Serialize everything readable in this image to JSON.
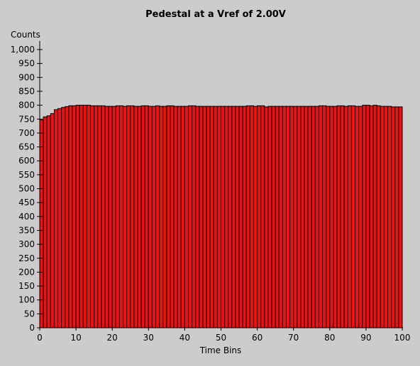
{
  "chart_data": {
    "type": "bar",
    "title": "Pedestal at a Vref of 2.00V",
    "xlabel": "Time Bins",
    "ylabel": "Counts",
    "xlim": [
      0,
      100
    ],
    "ylim": [
      0,
      1000
    ],
    "x_ticks": [
      "0",
      "10",
      "20",
      "30",
      "40",
      "50",
      "60",
      "70",
      "80",
      "90",
      "100"
    ],
    "y_ticks": [
      "0",
      "50",
      "100",
      "150",
      "200",
      "250",
      "300",
      "350",
      "400",
      "450",
      "500",
      "550",
      "600",
      "650",
      "700",
      "750",
      "800",
      "850",
      "900",
      "950",
      "1,000"
    ],
    "bar_color": "#ee1111",
    "background": "#cccccc",
    "grid": false,
    "values": [
      748,
      758,
      762,
      770,
      784,
      788,
      792,
      795,
      798,
      798,
      800,
      800,
      800,
      800,
      798,
      798,
      798,
      798,
      796,
      796,
      796,
      798,
      798,
      796,
      798,
      798,
      796,
      796,
      798,
      798,
      796,
      796,
      798,
      796,
      796,
      798,
      798,
      796,
      796,
      796,
      796,
      798,
      798,
      796,
      796,
      796,
      796,
      796,
      796,
      796,
      796,
      796,
      796,
      796,
      796,
      796,
      796,
      798,
      798,
      796,
      798,
      798,
      794,
      796,
      796,
      796,
      796,
      796,
      796,
      796,
      796,
      796,
      796,
      796,
      796,
      796,
      796,
      798,
      798,
      796,
      796,
      796,
      798,
      798,
      796,
      798,
      798,
      796,
      796,
      800,
      800,
      798,
      800,
      798,
      796,
      796,
      796,
      794,
      794,
      794
    ]
  }
}
